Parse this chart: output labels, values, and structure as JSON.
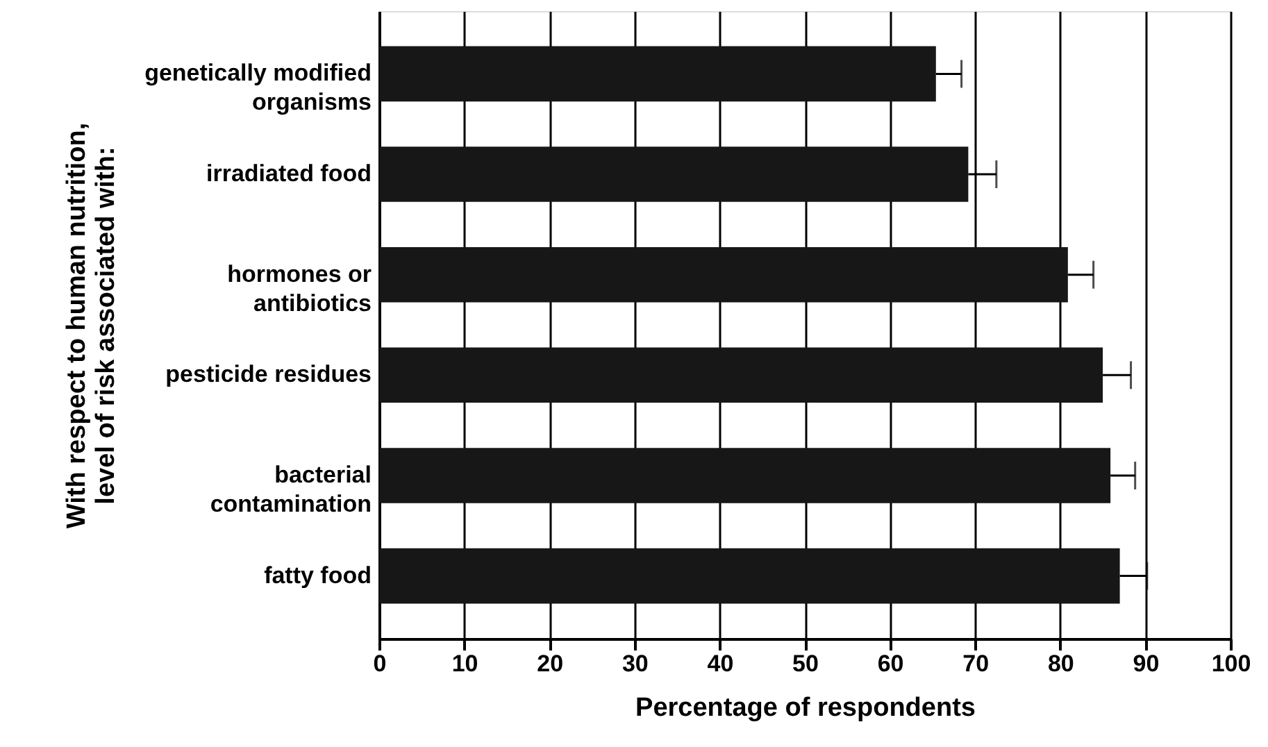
{
  "chart_data": {
    "type": "bar",
    "orientation": "horizontal",
    "xlabel": "Percentage of respondents",
    "ylabel": "With respect to human nutrition, level of risk associated with:",
    "categories": [
      "genetically modified organisms",
      "irradiated food",
      "hormones or antibiotics",
      "pesticide residues",
      "bacterial contamination",
      "fatty food"
    ],
    "values": [
      65.4,
      69.2,
      80.9,
      85.0,
      85.9,
      87.0
    ],
    "errors": [
      [
        65.4,
        68.4
      ],
      [
        69.2,
        72.5
      ],
      [
        80.9,
        83.9
      ],
      [
        85.0,
        88.3
      ],
      [
        85.9,
        88.8
      ],
      [
        87.0,
        90.2
      ]
    ],
    "color": "#171717",
    "xlim": [
      0,
      100
    ],
    "xticks": [
      0,
      10,
      20,
      30,
      40,
      50,
      60,
      70,
      80,
      90,
      100
    ],
    "grid": "x"
  }
}
